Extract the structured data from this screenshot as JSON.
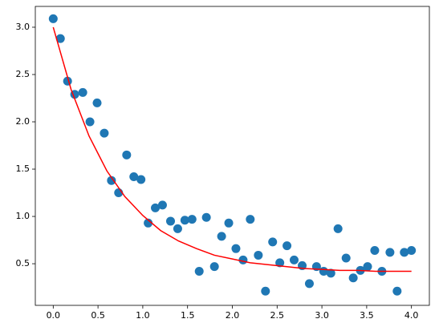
{
  "chart_data": {
    "type": "scatter",
    "series": [
      {
        "type": "scatter",
        "color": "#1f77b4",
        "x": [
          0,
          0.08,
          0.16,
          0.24,
          0.33,
          0.41,
          0.49,
          0.57,
          0.65,
          0.73,
          0.82,
          0.9,
          0.98,
          1.06,
          1.14,
          1.22,
          1.31,
          1.39,
          1.47,
          1.55,
          1.63,
          1.71,
          1.8,
          1.88,
          1.96,
          2.04,
          2.12,
          2.2,
          2.29,
          2.37,
          2.45,
          2.53,
          2.61,
          2.69,
          2.78,
          2.86,
          2.94,
          3.02,
          3.1,
          3.18,
          3.27,
          3.35,
          3.43,
          3.51,
          3.59,
          3.67,
          3.76,
          3.84,
          3.92,
          4.0
        ],
        "values": [
          3.09,
          2.88,
          2.43,
          2.29,
          2.31,
          2.0,
          2.2,
          1.88,
          1.38,
          1.25,
          1.65,
          1.42,
          1.39,
          0.93,
          1.09,
          1.12,
          0.95,
          0.87,
          0.96,
          0.97,
          0.42,
          0.99,
          0.47,
          0.79,
          0.93,
          0.66,
          0.54,
          0.97,
          0.59,
          0.21,
          0.73,
          0.51,
          0.69,
          0.54,
          0.48,
          0.29,
          0.47,
          0.42,
          0.4,
          0.87,
          0.56,
          0.35,
          0.43,
          0.47,
          0.64,
          0.42,
          0.62,
          0.21,
          0.62,
          0.64
        ]
      },
      {
        "type": "line",
        "color": "#ff0000",
        "x": [
          0,
          0.2,
          0.4,
          0.6,
          0.8,
          1.0,
          1.2,
          1.4,
          1.6,
          1.8,
          2.0,
          2.2,
          2.4,
          2.6,
          2.8,
          3.0,
          3.2,
          3.4,
          3.6,
          3.8,
          4.0
        ],
        "values": [
          3.0,
          2.34,
          1.85,
          1.48,
          1.21,
          1.01,
          0.85,
          0.74,
          0.66,
          0.59,
          0.55,
          0.51,
          0.49,
          0.47,
          0.45,
          0.44,
          0.43,
          0.43,
          0.42,
          0.42,
          0.42
        ]
      }
    ],
    "xlim": [
      -0.2,
      4.2
    ],
    "ylim": [
      0.06,
      3.22
    ],
    "xticks": [
      {
        "value": 0,
        "label": "0.0"
      },
      0.5,
      {
        "value": 1,
        "label": "1.0"
      },
      1.5,
      {
        "value": 2,
        "label": "2.0"
      },
      2.5,
      {
        "value": 3,
        "label": "3.0"
      },
      3.5,
      {
        "value": 4,
        "label": "4.0"
      }
    ],
    "yticks": [
      0.5,
      {
        "value": 1,
        "label": "1.0"
      },
      1.5,
      {
        "value": 2,
        "label": "2.0"
      },
      2.5,
      {
        "value": 3,
        "label": "3.0"
      }
    ],
    "grid": false
  }
}
